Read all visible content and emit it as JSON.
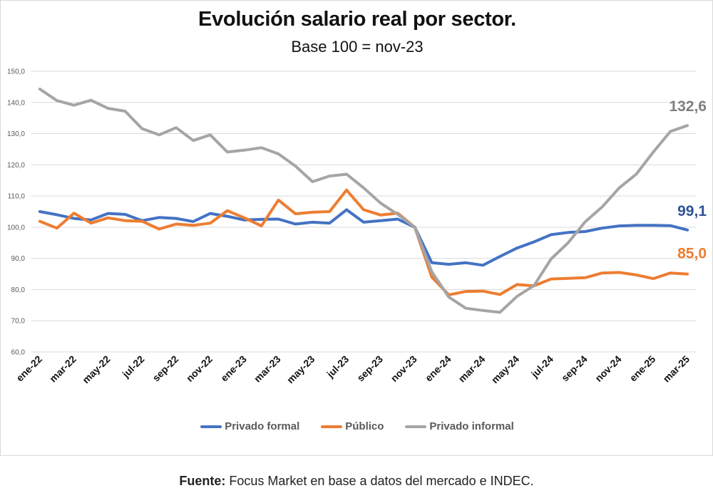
{
  "chart_data": {
    "type": "line",
    "title": "Evolución salario real por sector.",
    "subtitle": "Base 100 = nov-23",
    "ylim": [
      60,
      150
    ],
    "yticks": [
      "60,0",
      "70,0",
      "80,0",
      "90,0",
      "100,0",
      "110,0",
      "120,0",
      "130,0",
      "140,0",
      "150,0"
    ],
    "ytick_values": [
      60,
      70,
      80,
      90,
      100,
      110,
      120,
      130,
      140,
      150
    ],
    "xtick_labels": [
      "ene-22",
      "mar-22",
      "may-22",
      "jul-22",
      "sep-22",
      "nov-22",
      "ene-23",
      "mar-23",
      "may-23",
      "jul-23",
      "sep-23",
      "nov-23",
      "ene-24",
      "mar-24",
      "may-24",
      "jul-24",
      "sep-24",
      "nov-24",
      "ene-25",
      "mar-25"
    ],
    "categories": [
      "ene-22",
      "feb-22",
      "mar-22",
      "abr-22",
      "may-22",
      "jun-22",
      "jul-22",
      "ago-22",
      "sep-22",
      "oct-22",
      "nov-22",
      "dic-22",
      "ene-23",
      "feb-23",
      "mar-23",
      "abr-23",
      "may-23",
      "jun-23",
      "jul-23",
      "ago-23",
      "sep-23",
      "oct-23",
      "nov-23",
      "dic-23",
      "ene-24",
      "feb-24",
      "mar-24",
      "abr-24",
      "may-24",
      "jun-24",
      "jul-24",
      "ago-24",
      "sep-24",
      "oct-24",
      "nov-24",
      "dic-24",
      "ene-25",
      "feb-25",
      "mar-25"
    ],
    "grid": true,
    "legend_position": "bottom",
    "series": [
      {
        "name": "Privado formal",
        "color": "#4472C4",
        "end_label": "99,1",
        "values": [
          105.0,
          104.0,
          102.8,
          102.3,
          104.4,
          104.1,
          102.1,
          103.1,
          102.8,
          101.8,
          104.4,
          103.5,
          102.3,
          102.5,
          102.6,
          101.0,
          101.6,
          101.3,
          105.6,
          101.6,
          102.1,
          102.6,
          100.0,
          88.6,
          88.1,
          88.6,
          87.8,
          90.6,
          93.3,
          95.3,
          97.6,
          98.3,
          98.6,
          99.7,
          100.4,
          100.6,
          100.6,
          100.5,
          99.1
        ]
      },
      {
        "name": "Público",
        "color": "#ED7D31",
        "end_label": "85,0",
        "values": [
          101.9,
          99.7,
          104.5,
          101.3,
          103.0,
          102.1,
          101.9,
          99.4,
          101.0,
          100.6,
          101.3,
          105.3,
          103.0,
          100.4,
          108.7,
          104.3,
          104.8,
          105.0,
          111.9,
          105.6,
          103.9,
          104.5,
          100.0,
          84.0,
          78.3,
          79.4,
          79.5,
          78.4,
          81.6,
          81.2,
          83.4,
          83.6,
          83.8,
          85.3,
          85.5,
          84.7,
          83.5,
          85.3,
          85.0
        ]
      },
      {
        "name": "Privado informal",
        "color": "#A5A5A5",
        "end_label": "132,6",
        "values": [
          144.3,
          140.6,
          139.1,
          140.7,
          138.1,
          137.2,
          131.6,
          129.6,
          131.9,
          127.8,
          129.6,
          124.1,
          124.7,
          125.5,
          123.5,
          119.6,
          114.6,
          116.4,
          117.0,
          112.6,
          107.7,
          104.1,
          100.0,
          85.7,
          77.6,
          74.0,
          73.3,
          72.7,
          77.8,
          81.3,
          89.8,
          95.0,
          101.7,
          106.5,
          112.6,
          117.0,
          124.1,
          130.7,
          132.6
        ]
      }
    ]
  },
  "source": {
    "label": "Fuente:",
    "text": " Focus Market en base a datos del mercado e INDEC."
  }
}
